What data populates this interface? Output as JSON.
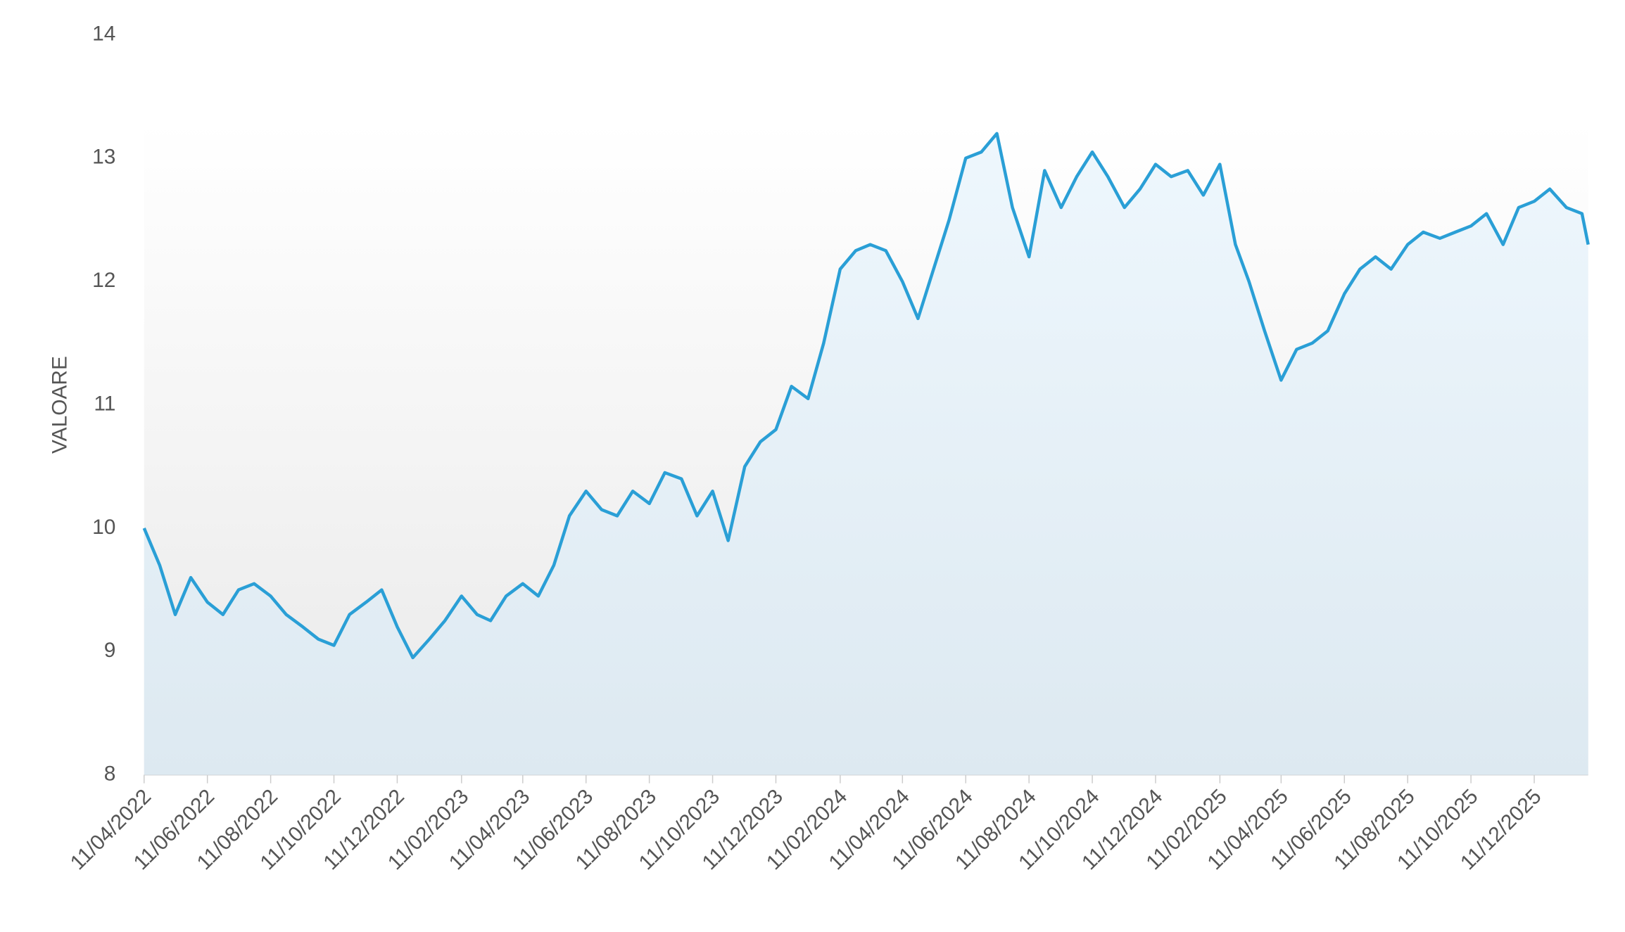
{
  "chart_data": {
    "type": "line",
    "y_label": "VALOARE",
    "x": [
      "11/04/2022",
      "26/04/2022",
      "11/05/2022",
      "26/05/2022",
      "11/06/2022",
      "26/06/2022",
      "11/07/2022",
      "26/07/2022",
      "11/08/2022",
      "26/08/2022",
      "11/09/2022",
      "26/09/2022",
      "11/10/2022",
      "26/10/2022",
      "11/11/2022",
      "26/11/2022",
      "11/12/2022",
      "26/12/2022",
      "11/01/2023",
      "26/01/2023",
      "11/02/2023",
      "26/02/2023",
      "11/03/2023",
      "26/03/2023",
      "11/04/2023",
      "26/04/2023",
      "11/05/2023",
      "26/05/2023",
      "11/06/2023",
      "26/06/2023",
      "11/07/2023",
      "26/07/2023",
      "11/08/2023",
      "26/08/2023",
      "11/09/2023",
      "26/09/2023",
      "11/10/2023",
      "26/10/2023",
      "11/11/2023",
      "26/11/2023",
      "11/12/2023",
      "26/12/2023",
      "11/01/2024",
      "26/01/2024",
      "11/02/2024",
      "26/02/2024",
      "11/03/2024",
      "26/03/2024",
      "11/04/2024",
      "26/04/2024",
      "11/05/2024",
      "26/05/2024",
      "11/06/2024",
      "26/06/2024",
      "11/07/2024",
      "26/07/2024",
      "11/08/2024",
      "26/08/2024",
      "11/09/2024",
      "26/09/2024",
      "11/10/2024",
      "26/10/2024",
      "11/11/2024",
      "26/11/2024",
      "11/12/2024",
      "26/12/2024",
      "11/01/2025",
      "26/01/2025",
      "11/02/2025",
      "26/02/2025",
      "11/03/2025",
      "26/03/2025",
      "11/04/2025",
      "26/04/2025",
      "11/05/2025",
      "26/05/2025",
      "11/06/2025",
      "26/06/2025",
      "11/07/2025",
      "26/07/2025",
      "11/08/2025",
      "26/08/2025",
      "11/09/2025",
      "26/09/2025",
      "11/10/2025",
      "26/10/2025",
      "11/11/2025",
      "26/11/2025",
      "11/12/2025",
      "26/12/2025",
      "11/01/2026",
      "26/01/2026",
      "01/02/2026"
    ],
    "series": [
      {
        "name": "VALOARE",
        "color": "#2a9fd6",
        "values": [
          10.0,
          9.7,
          9.3,
          9.6,
          9.4,
          9.3,
          9.5,
          9.55,
          9.45,
          9.3,
          9.2,
          9.1,
          9.05,
          9.3,
          9.4,
          9.5,
          9.2,
          8.95,
          9.1,
          9.25,
          9.45,
          9.3,
          9.25,
          9.45,
          9.55,
          9.45,
          9.7,
          10.1,
          10.3,
          10.15,
          10.1,
          10.3,
          10.2,
          10.45,
          10.4,
          10.1,
          10.3,
          9.9,
          10.5,
          10.7,
          10.8,
          11.15,
          11.05,
          11.5,
          12.1,
          12.25,
          12.3,
          12.25,
          12.0,
          11.7,
          12.1,
          12.5,
          13.0,
          13.05,
          13.2,
          12.6,
          12.2,
          12.9,
          12.6,
          12.85,
          13.05,
          12.85,
          12.6,
          12.75,
          12.95,
          12.85,
          12.9,
          12.7,
          12.95,
          12.3,
          12.0,
          11.6,
          11.2,
          11.45,
          11.5,
          11.6,
          11.9,
          12.1,
          12.2,
          12.1,
          12.3,
          12.4,
          12.35,
          12.4,
          12.45,
          12.55,
          12.3,
          12.6,
          12.65,
          12.75,
          12.6,
          12.55,
          12.3
        ]
      }
    ],
    "xlim": [
      "11/04/2022",
      "01/02/2026"
    ],
    "xticks": [
      "11/04/2022",
      "11/06/2022",
      "11/08/2022",
      "11/10/2022",
      "11/12/2022",
      "11/02/2023",
      "11/04/2023",
      "11/06/2023",
      "11/08/2023",
      "11/10/2023",
      "11/12/2023",
      "11/02/2024",
      "11/04/2024",
      "11/06/2024",
      "11/08/2024",
      "11/10/2024",
      "11/12/2024",
      "11/02/2025",
      "11/04/2025",
      "11/06/2025",
      "11/08/2025",
      "11/10/2025",
      "11/12/2025"
    ],
    "ylim": [
      8,
      14
    ],
    "yticks": [
      8,
      9,
      10,
      11,
      12,
      13,
      14
    ]
  }
}
